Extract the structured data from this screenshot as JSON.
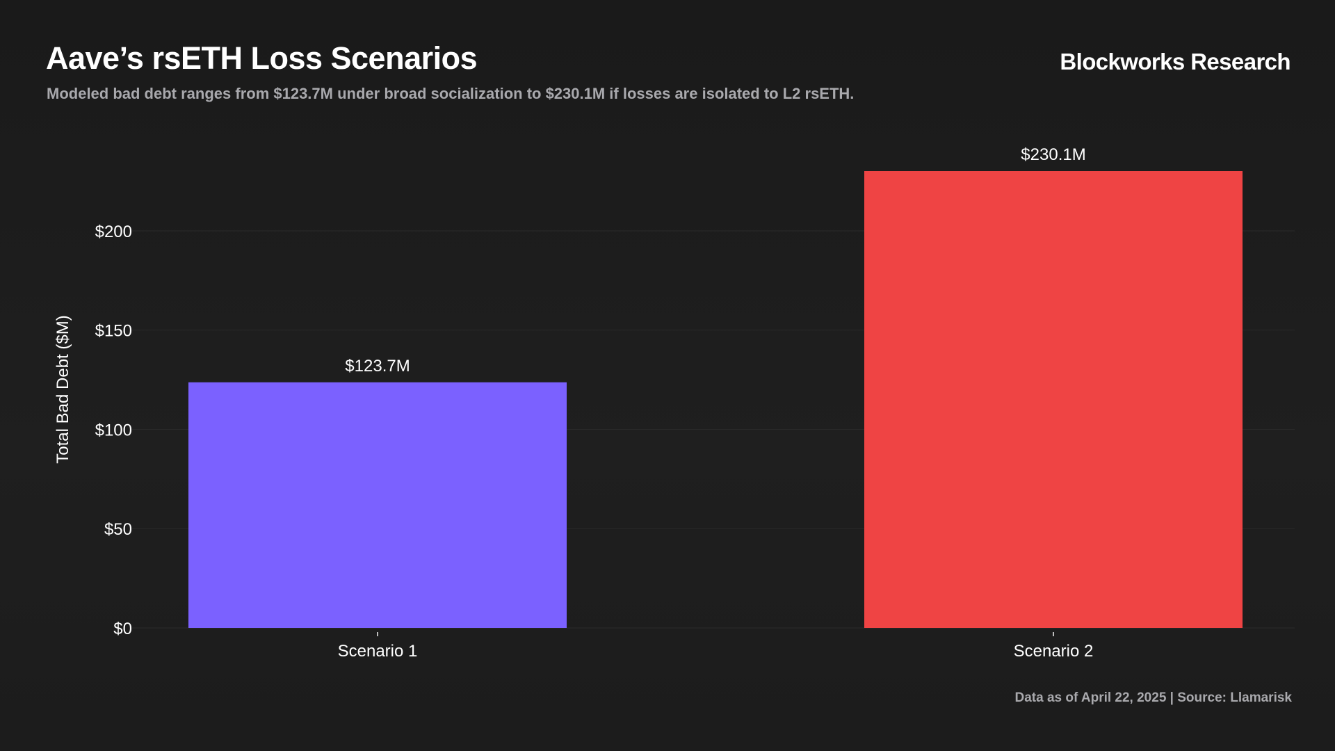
{
  "header": {
    "title": "Aave’s rsETH Loss Scenarios",
    "subtitle": "Modeled bad debt ranges from $123.7M under broad socialization to $230.1M if losses are isolated to L2 rsETH.",
    "brand": "Blockworks Research"
  },
  "footer": {
    "source": "Data as of April 22, 2025 | Source: Llamarisk"
  },
  "chart_data": {
    "type": "bar",
    "title": "Aave’s rsETH Loss Scenarios",
    "xlabel": "",
    "ylabel": "Total Bad Debt ($M)",
    "ylim": [
      0,
      230.1
    ],
    "yticks": [
      0,
      50,
      100,
      150,
      200
    ],
    "ytick_labels": [
      "$0",
      "$50",
      "$100",
      "$150",
      "$200"
    ],
    "categories": [
      "Scenario 1",
      "Scenario 2"
    ],
    "values": [
      123.7,
      230.1
    ],
    "value_labels": [
      "$123.7M",
      "$230.1M"
    ],
    "colors": [
      "#7b61ff",
      "#ef4444"
    ],
    "grid": true,
    "legend": "none"
  },
  "colors": {
    "background": "#1c1c1c",
    "grid": "#2a2a2a",
    "text": "#ffffff",
    "muted": "#a9a9ad"
  }
}
